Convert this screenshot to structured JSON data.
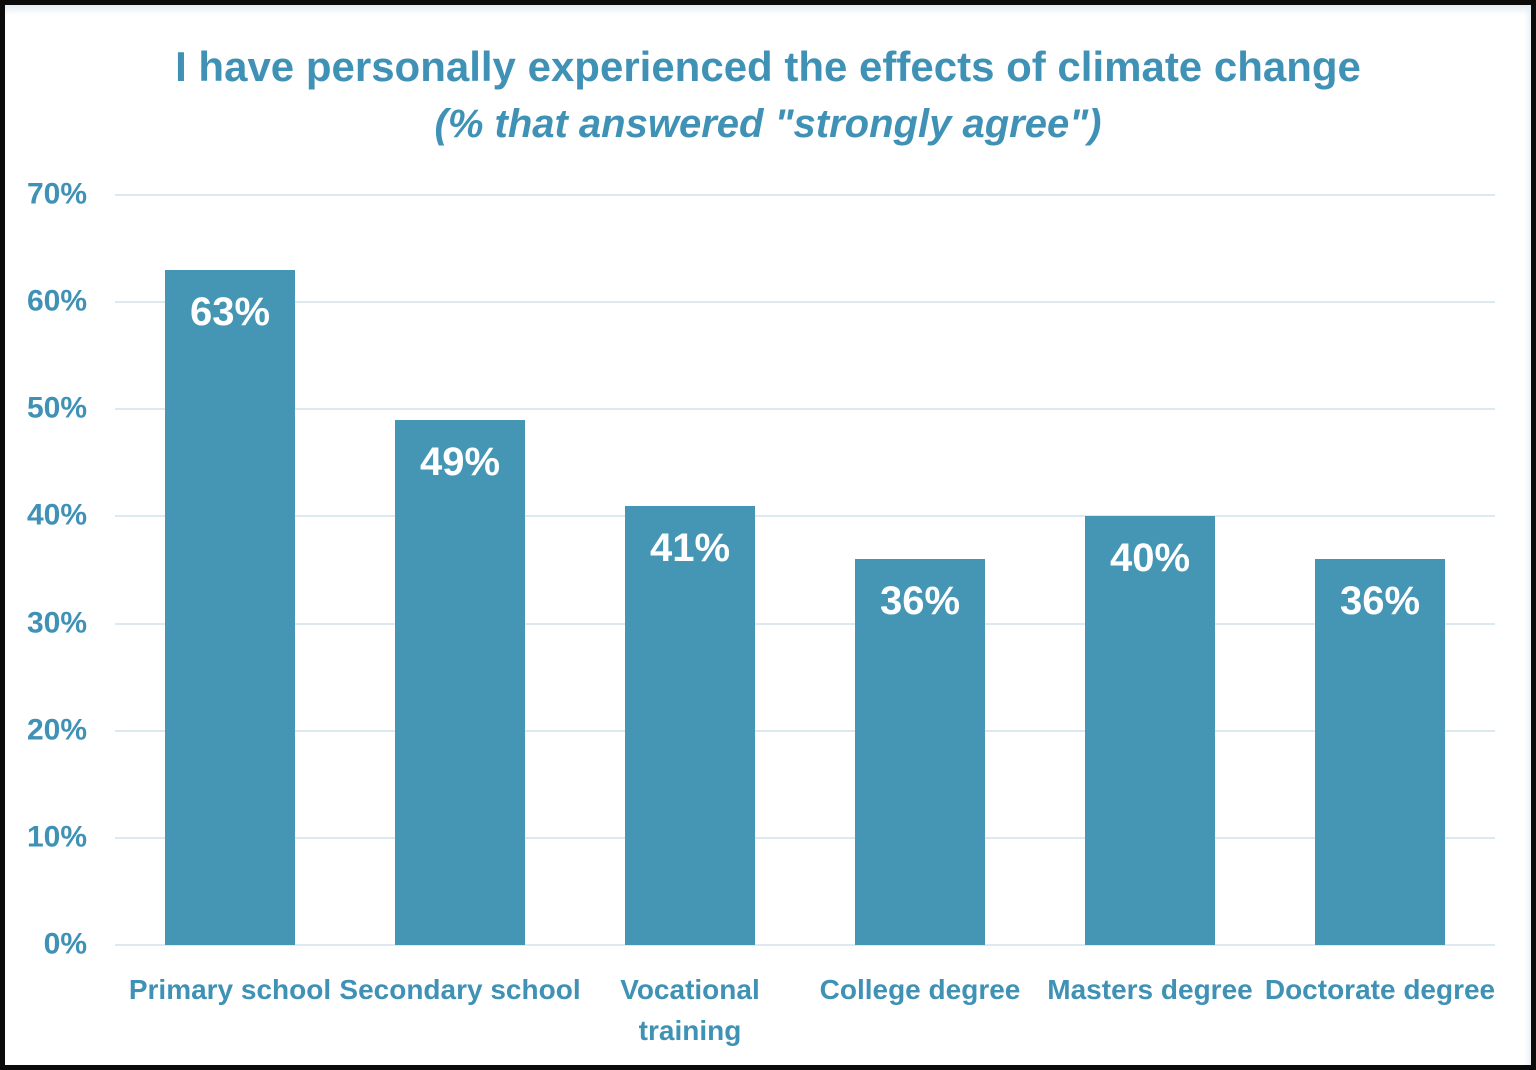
{
  "chart_data": {
    "type": "bar",
    "title": "I have personally experienced the effects of climate change",
    "subtitle": "(% that answered \"strongly agree\")",
    "categories": [
      "Primary school",
      "Secondary school",
      "Vocational training",
      "College degree",
      "Masters degree",
      "Doctorate degree"
    ],
    "values": [
      63,
      49,
      41,
      36,
      40,
      36
    ],
    "value_labels": [
      "63%",
      "49%",
      "41%",
      "36%",
      "40%",
      "36%"
    ],
    "xlabel": "",
    "ylabel": "",
    "ylim": [
      0,
      70
    ],
    "ytick_values": [
      70,
      60,
      50,
      40,
      30,
      20,
      10,
      0
    ],
    "ytick_labels": [
      "70%",
      "60%",
      "50%",
      "40%",
      "30%",
      "20%",
      "10%",
      "0%"
    ],
    "grid": true,
    "legend": false,
    "colors": {
      "bar": "#4496b4",
      "title_text": "#3f92b5",
      "axis_text": "#3f92b5",
      "data_label_text": "#ffffff",
      "gridline": "#dde9f1",
      "background": "#ffffff",
      "frame_border": "#0b0b0b"
    }
  }
}
